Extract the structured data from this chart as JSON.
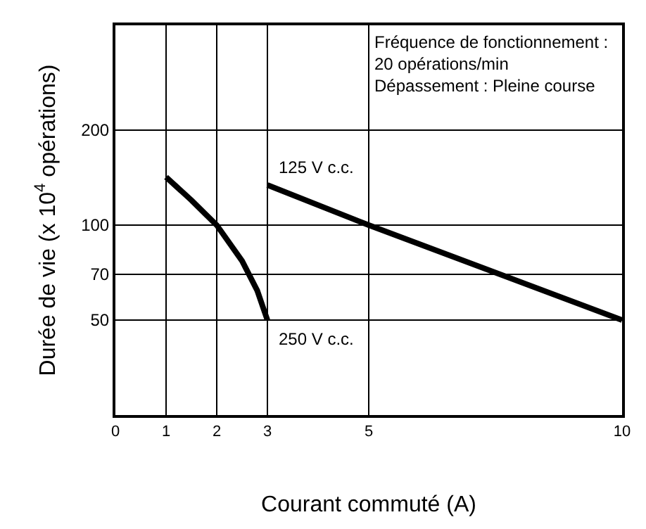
{
  "chart_data": {
    "type": "line",
    "xlabel": "Courant commuté (A)",
    "ylabel": "Durée de vie (x 10$^{4}$ opérations)",
    "series": [
      {
        "name": "250 V c.c.",
        "color": "#000000",
        "x": [
          1,
          1.5,
          2,
          2.5,
          2.8,
          3
        ],
        "values": [
          142,
          120,
          100,
          77,
          62,
          50
        ]
      },
      {
        "name": "125 V c.c.",
        "color": "#000000",
        "x": [
          3,
          5,
          10
        ],
        "values": [
          134,
          100,
          50
        ]
      }
    ],
    "annotations": [
      "Fréquence de fonctionnement :\n20 opérations/min\nDépassement : Pleine course"
    ],
    "log": "y",
    "xlim": [
      0,
      10
    ],
    "xticks": [
      0,
      1,
      2,
      3,
      5,
      10
    ],
    "ylim": [
      25,
      430
    ],
    "yticks": [
      50,
      70,
      100,
      200
    ],
    "grid": true,
    "legend": false,
    "marker": "none",
    "line_style": "solid"
  }
}
